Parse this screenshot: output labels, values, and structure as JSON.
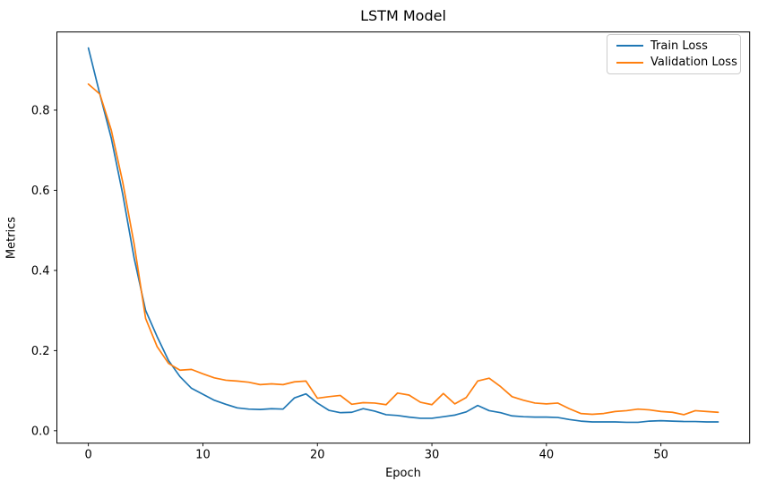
{
  "chart_data": {
    "type": "line",
    "title": "LSTM Model",
    "xlabel": "Epoch",
    "ylabel": "Metrics",
    "grid": false,
    "legend_position": "upper right",
    "xlim": [
      -2.75,
      57.75
    ],
    "ylim": [
      -0.031,
      0.995
    ],
    "x_ticks": {
      "values": [
        0,
        10,
        20,
        30,
        40,
        50
      ],
      "labels": [
        "0",
        "10",
        "20",
        "30",
        "40",
        "50"
      ]
    },
    "y_ticks": {
      "values": [
        0.0,
        0.2,
        0.4,
        0.6,
        0.8
      ],
      "labels": [
        "0.0",
        "0.2",
        "0.4",
        "0.6",
        "0.8"
      ]
    },
    "x": [
      0,
      1,
      2,
      3,
      4,
      5,
      6,
      7,
      8,
      9,
      10,
      11,
      12,
      13,
      14,
      15,
      16,
      17,
      18,
      19,
      20,
      21,
      22,
      23,
      24,
      25,
      26,
      27,
      28,
      29,
      30,
      31,
      32,
      33,
      34,
      35,
      36,
      37,
      38,
      39,
      40,
      41,
      42,
      43,
      44,
      45,
      46,
      47,
      48,
      49,
      50,
      51,
      52,
      53,
      54,
      55
    ],
    "series": [
      {
        "name": "Train Loss",
        "color": "#1f77b4",
        "values": [
          0.955,
          0.84,
          0.73,
          0.59,
          0.43,
          0.3,
          0.235,
          0.175,
          0.135,
          0.106,
          0.091,
          0.076,
          0.066,
          0.057,
          0.054,
          0.053,
          0.055,
          0.054,
          0.082,
          0.092,
          0.069,
          0.051,
          0.045,
          0.046,
          0.055,
          0.049,
          0.04,
          0.038,
          0.034,
          0.031,
          0.031,
          0.035,
          0.039,
          0.047,
          0.063,
          0.05,
          0.045,
          0.037,
          0.035,
          0.034,
          0.034,
          0.033,
          0.028,
          0.024,
          0.022,
          0.022,
          0.022,
          0.021,
          0.021,
          0.024,
          0.025,
          0.024,
          0.023,
          0.023,
          0.022,
          0.022
        ]
      },
      {
        "name": "Validation Loss",
        "color": "#ff7f0e",
        "values": [
          0.865,
          0.84,
          0.75,
          0.62,
          0.465,
          0.28,
          0.21,
          0.168,
          0.151,
          0.153,
          0.142,
          0.132,
          0.126,
          0.124,
          0.121,
          0.115,
          0.117,
          0.115,
          0.122,
          0.124,
          0.081,
          0.085,
          0.088,
          0.066,
          0.07,
          0.069,
          0.065,
          0.094,
          0.089,
          0.071,
          0.065,
          0.093,
          0.067,
          0.083,
          0.124,
          0.131,
          0.11,
          0.085,
          0.076,
          0.069,
          0.067,
          0.069,
          0.055,
          0.043,
          0.041,
          0.043,
          0.048,
          0.05,
          0.054,
          0.052,
          0.048,
          0.046,
          0.04,
          0.05,
          0.048,
          0.046
        ]
      }
    ],
    "axis_color": "#000000",
    "tick_label_color": "#000000"
  }
}
